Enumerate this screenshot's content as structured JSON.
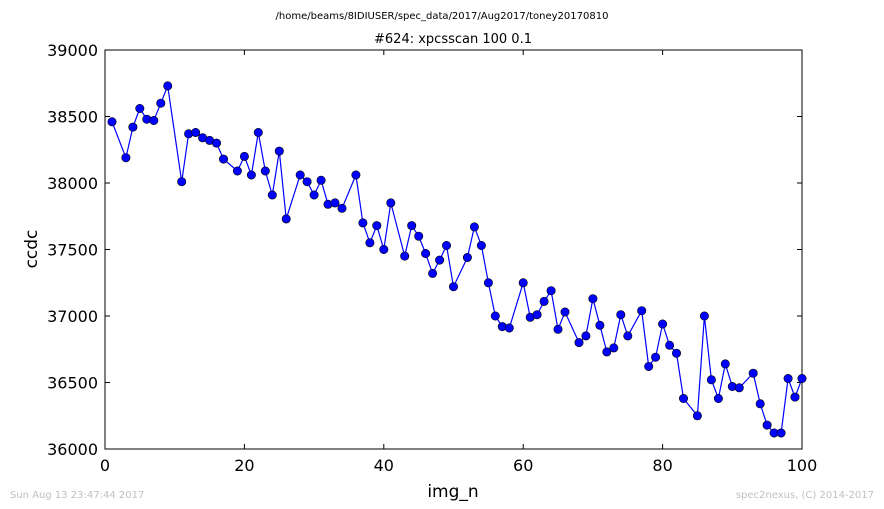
{
  "header": {
    "file_path": "/home/beams/8IDIUSER/spec_data/2017/Aug2017/toney20170810",
    "scan_title": "#624: xpcsscan 100 0.1"
  },
  "footer": {
    "timestamp": "Sun Aug 13 23:47:44 2017",
    "credit": "spec2nexus, (C) 2014-2017"
  },
  "chart_data": {
    "type": "line",
    "title": "#624: xpcsscan 100 0.1",
    "xlabel": "img_n",
    "ylabel": "ccdc",
    "xlim": [
      0,
      100
    ],
    "ylim": [
      36000,
      39000
    ],
    "x_ticks": [
      0,
      20,
      40,
      60,
      80,
      100
    ],
    "y_ticks": [
      36000,
      36500,
      37000,
      37500,
      38000,
      38500,
      39000
    ],
    "grid": false,
    "line_color": "#0000ff",
    "marker": "circle",
    "series": [
      {
        "x": [
          1,
          3,
          4,
          5,
          6,
          7,
          8,
          9,
          11,
          12,
          13,
          14,
          15,
          16,
          17,
          19,
          20,
          21,
          22,
          23,
          24,
          25,
          26,
          28,
          29,
          30,
          31,
          32,
          33,
          34,
          36,
          37,
          38,
          39,
          40,
          41,
          43,
          44,
          45,
          46,
          47,
          48,
          49,
          50,
          52,
          53,
          54,
          55,
          56,
          57,
          58,
          60,
          61,
          62,
          63,
          64,
          65,
          66,
          68,
          69,
          70,
          71,
          72,
          73,
          74,
          75,
          77,
          78,
          79,
          80,
          81,
          82,
          83,
          85,
          86,
          87,
          88,
          89,
          90,
          91,
          93,
          94,
          95,
          96,
          97,
          98,
          99,
          100
        ],
        "y": [
          38460,
          38190,
          38420,
          38560,
          38480,
          38470,
          38600,
          38730,
          38010,
          38370,
          38380,
          38340,
          38320,
          38300,
          38180,
          38090,
          38200,
          38060,
          38380,
          38090,
          37910,
          38240,
          37730,
          38060,
          38010,
          37910,
          38020,
          37840,
          37850,
          37810,
          38060,
          37700,
          37550,
          37680,
          37500,
          37850,
          37450,
          37680,
          37600,
          37470,
          37320,
          37420,
          37530,
          37220,
          37440,
          37670,
          37530,
          37250,
          37000,
          36920,
          36910,
          37250,
          36990,
          37010,
          37110,
          37190,
          36900,
          37030,
          36800,
          36850,
          37130,
          36930,
          36730,
          36760,
          37010,
          36850,
          37040,
          36620,
          36690,
          36940,
          36780,
          36720,
          36380,
          36250,
          37000,
          36520,
          36380,
          36640,
          36470,
          36460,
          36570,
          36340,
          36180,
          36120,
          36120,
          36530,
          36390,
          36530
        ]
      }
    ]
  }
}
